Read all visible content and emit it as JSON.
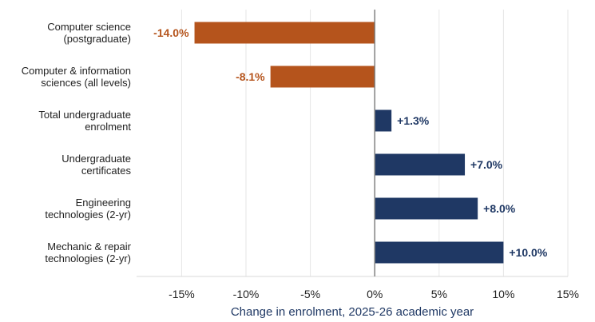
{
  "chart_data": {
    "type": "bar",
    "orientation": "horizontal",
    "categories": [
      [
        "Computer science",
        "(postgraduate)"
      ],
      [
        "Computer & information",
        "sciences (all levels)"
      ],
      [
        "Total undergraduate",
        "enrolment"
      ],
      [
        "Undergraduate",
        "certificates"
      ],
      [
        "Engineering",
        "technologies (2-yr)"
      ],
      [
        "Mechanic & repair",
        "technologies (2-yr)"
      ]
    ],
    "values": [
      -14.0,
      -8.1,
      1.3,
      7.0,
      8.0,
      10.0
    ],
    "data_labels": [
      "-14.0%",
      "-8.1%",
      "+1.3%",
      "+7.0%",
      "+8.0%",
      "+10.0%"
    ],
    "xlabel": "Change in enrolment, 2025-26 academic year",
    "xlim": [
      -18.5,
      15
    ],
    "xticks": [
      -15,
      -10,
      -5,
      0,
      5,
      10,
      15
    ],
    "xtick_labels": [
      "-15%",
      "-10%",
      "-5%",
      "0%",
      "5%",
      "10%",
      "15%"
    ],
    "grid": "vertical",
    "colors": {
      "negative": "#B5541C",
      "positive": "#1F3864",
      "grid": "#e6e6e6",
      "zero_line": "#808080",
      "axis_title": "#1F3864"
    }
  }
}
